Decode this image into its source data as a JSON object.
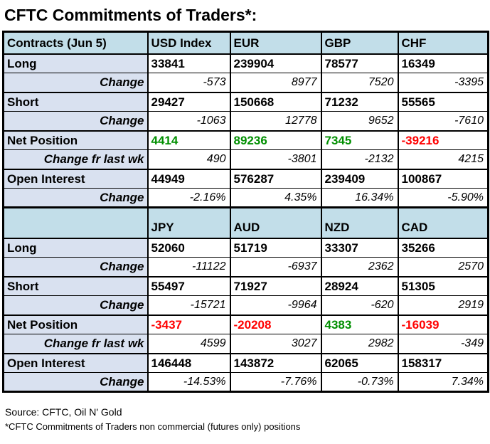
{
  "title": "CFTC Commitments of Traders*:",
  "colors": {
    "header_bg": "#c2dee9",
    "label_bg": "#d9e1f0",
    "positive": "#008f00",
    "negative": "#ff0000",
    "border": "#000000"
  },
  "footer": {
    "source": "Source: CFTC, Oil N' Gold",
    "note": "*CFTC Commitments of Traders non commercial (futures only) positions"
  },
  "table": {
    "sections": [
      {
        "header": {
          "label": "Contracts (Jun 5)",
          "columns": [
            "USD Index",
            "EUR",
            "GBP",
            "CHF"
          ]
        },
        "rows": [
          {
            "label": "Long",
            "style": "value",
            "group_start": false,
            "values": [
              "33841",
              "239904",
              "78577",
              "16349"
            ]
          },
          {
            "label": "Change",
            "style": "change",
            "group_start": false,
            "values": [
              "-573",
              "8977",
              "7520",
              "-3395"
            ]
          },
          {
            "label": "Short",
            "style": "value",
            "group_start": true,
            "values": [
              "29427",
              "150668",
              "71232",
              "55565"
            ]
          },
          {
            "label": "Change",
            "style": "change",
            "group_start": false,
            "values": [
              "-1063",
              "12778",
              "9652",
              "-7610"
            ]
          },
          {
            "label": "Net Position",
            "style": "net",
            "group_start": true,
            "values": [
              "4414",
              "89236",
              "7345",
              "-39216"
            ]
          },
          {
            "label": "Change fr last wk",
            "style": "change",
            "group_start": false,
            "values": [
              "490",
              "-3801",
              "-2132",
              "4215"
            ]
          },
          {
            "label": "Open Interest",
            "style": "value",
            "group_start": true,
            "values": [
              "44949",
              "576287",
              "239409",
              "100867"
            ]
          },
          {
            "label": "Change",
            "style": "change",
            "group_start": false,
            "values": [
              "-2.16%",
              "4.35%",
              "16.34%",
              "-5.90%"
            ]
          }
        ]
      },
      {
        "header": {
          "label": "",
          "columns": [
            "JPY",
            "AUD",
            "NZD",
            "CAD"
          ]
        },
        "rows": [
          {
            "label": "Long",
            "style": "value",
            "group_start": false,
            "values": [
              "52060",
              "51719",
              "33307",
              "35266"
            ]
          },
          {
            "label": "Change",
            "style": "change",
            "group_start": false,
            "values": [
              "-11122",
              "-6937",
              "2362",
              "2570"
            ]
          },
          {
            "label": "Short",
            "style": "value",
            "group_start": true,
            "values": [
              "55497",
              "71927",
              "28924",
              "51305"
            ]
          },
          {
            "label": "Change",
            "style": "change",
            "group_start": false,
            "values": [
              "-15721",
              "-9964",
              "-620",
              "2919"
            ]
          },
          {
            "label": "Net Position",
            "style": "net",
            "group_start": true,
            "values": [
              "-3437",
              "-20208",
              "4383",
              "-16039"
            ]
          },
          {
            "label": "Change fr last wk",
            "style": "change",
            "group_start": false,
            "values": [
              "4599",
              "3027",
              "2982",
              "-349"
            ]
          },
          {
            "label": "Open Interest",
            "style": "value",
            "group_start": true,
            "values": [
              "146448",
              "143872",
              "62065",
              "158317"
            ]
          },
          {
            "label": "Change",
            "style": "change",
            "group_start": false,
            "values": [
              "-14.53%",
              "-7.76%",
              "-0.73%",
              "7.34%"
            ]
          }
        ]
      }
    ]
  },
  "chart_data": {
    "type": "table",
    "title": "CFTC Commitments of Traders*:",
    "report_date": "Jun 5",
    "row_labels": [
      "Long",
      "Change",
      "Short",
      "Change",
      "Net Position",
      "Change fr last wk",
      "Open Interest",
      "Change"
    ],
    "series": [
      {
        "name": "USD Index",
        "long": 33841,
        "long_change": -573,
        "short": 29427,
        "short_change": -1063,
        "net_position": 4414,
        "net_change_fr_last_wk": 490,
        "open_interest": 44949,
        "open_interest_change": "-2.16%"
      },
      {
        "name": "EUR",
        "long": 239904,
        "long_change": 8977,
        "short": 150668,
        "short_change": 12778,
        "net_position": 89236,
        "net_change_fr_last_wk": -3801,
        "open_interest": 576287,
        "open_interest_change": "4.35%"
      },
      {
        "name": "GBP",
        "long": 78577,
        "long_change": 7520,
        "short": 71232,
        "short_change": 9652,
        "net_position": 7345,
        "net_change_fr_last_wk": -2132,
        "open_interest": 239409,
        "open_interest_change": "16.34%"
      },
      {
        "name": "CHF",
        "long": 16349,
        "long_change": -3395,
        "short": 55565,
        "short_change": -7610,
        "net_position": -39216,
        "net_change_fr_last_wk": 4215,
        "open_interest": 100867,
        "open_interest_change": "-5.90%"
      },
      {
        "name": "JPY",
        "long": 52060,
        "long_change": -11122,
        "short": 55497,
        "short_change": -15721,
        "net_position": -3437,
        "net_change_fr_last_wk": 4599,
        "open_interest": 146448,
        "open_interest_change": "-14.53%"
      },
      {
        "name": "AUD",
        "long": 51719,
        "long_change": -6937,
        "short": 71927,
        "short_change": -9964,
        "net_position": -20208,
        "net_change_fr_last_wk": 3027,
        "open_interest": 143872,
        "open_interest_change": "-7.76%"
      },
      {
        "name": "NZD",
        "long": 33307,
        "long_change": 2362,
        "short": 28924,
        "short_change": -620,
        "net_position": 4383,
        "net_change_fr_last_wk": 2982,
        "open_interest": 62065,
        "open_interest_change": "-0.73%"
      },
      {
        "name": "CAD",
        "long": 35266,
        "long_change": 2570,
        "short": 51305,
        "short_change": 2919,
        "net_position": -16039,
        "net_change_fr_last_wk": -349,
        "open_interest": 158317,
        "open_interest_change": "7.34%"
      }
    ]
  }
}
